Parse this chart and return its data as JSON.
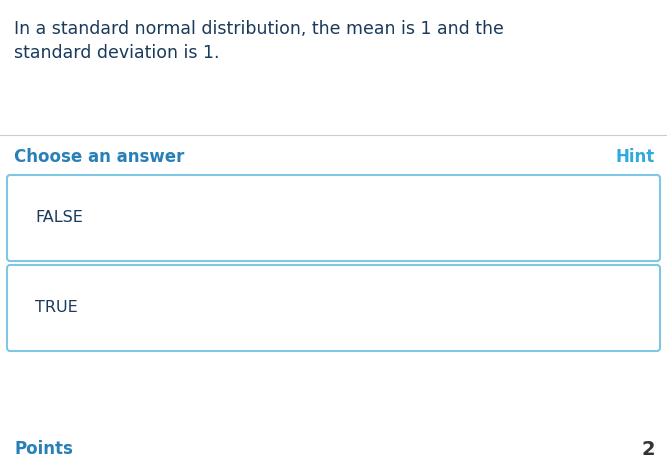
{
  "question_text_line1": "In a standard normal distribution, the mean is 1 and the",
  "question_text_line2": "standard deviation is 1.",
  "question_color": "#1a3a5c",
  "question_fontsize": 12.5,
  "section_label": "Choose an answer",
  "section_label_color": "#2980b9",
  "section_label_fontsize": 12,
  "hint_label": "Hint",
  "hint_color": "#2eaadc",
  "hint_fontsize": 12,
  "options": [
    "FALSE",
    "TRUE"
  ],
  "option_fontsize": 11.5,
  "option_text_color": "#1a3a5c",
  "box_edge_color": "#7ec8e3",
  "box_face_color": "#ffffff",
  "divider_color": "#cccccc",
  "points_label": "Points",
  "points_color": "#2980b9",
  "points_fontsize": 12,
  "points_value": "2",
  "points_value_color": "#333333",
  "background_color": "#ffffff"
}
